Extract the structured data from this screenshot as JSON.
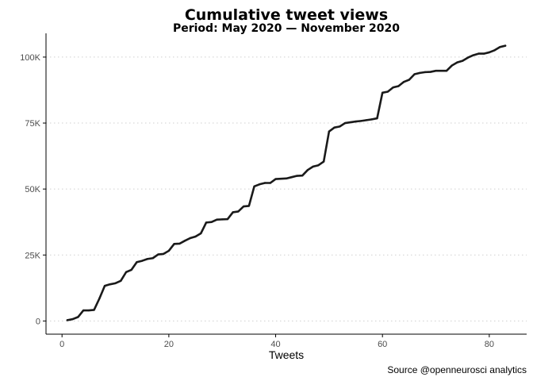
{
  "chart_data": {
    "type": "line",
    "title": "Cumulative tweet views",
    "subtitle": "Period: May 2020 — November 2020",
    "xlabel": "Tweets",
    "ylabel": "",
    "caption": "Source @openneurosci analytics",
    "xlim": [
      -3,
      87
    ],
    "ylim": [
      -5000,
      109000
    ],
    "xticks": [
      0,
      20,
      40,
      60,
      80
    ],
    "xtick_labels": [
      "0",
      "20",
      "40",
      "60",
      "80"
    ],
    "yticks": [
      0,
      25000,
      50000,
      75000,
      100000
    ],
    "ytick_labels": [
      "0",
      "25K",
      "50K",
      "75K",
      "100K"
    ],
    "grid": "horizontal-dotted",
    "legend": "none",
    "line_color": "#1a1a1a",
    "x": [
      1,
      2,
      3,
      4,
      5,
      6,
      7,
      8,
      9,
      10,
      11,
      12,
      13,
      14,
      15,
      16,
      17,
      18,
      19,
      20,
      21,
      22,
      23,
      24,
      25,
      26,
      27,
      28,
      29,
      30,
      31,
      32,
      33,
      34,
      35,
      36,
      37,
      38,
      39,
      40,
      41,
      42,
      43,
      44,
      45,
      46,
      47,
      48,
      49,
      50,
      51,
      52,
      53,
      54,
      55,
      56,
      57,
      58,
      59,
      60,
      61,
      62,
      63,
      64,
      65,
      66,
      67,
      68,
      69,
      70,
      71,
      72,
      73,
      74,
      75,
      76,
      77,
      78,
      79,
      80,
      81,
      82,
      83
    ],
    "y": [
      300,
      700,
      1500,
      4000,
      4000,
      4200,
      8500,
      13300,
      13900,
      14300,
      15200,
      18500,
      19400,
      22300,
      22800,
      23500,
      23800,
      25200,
      25400,
      26600,
      29200,
      29300,
      30400,
      31400,
      32000,
      33200,
      37300,
      37500,
      38400,
      38500,
      38600,
      41200,
      41500,
      43400,
      43600,
      51000,
      51800,
      52300,
      52300,
      53800,
      53900,
      54000,
      54500,
      55000,
      55100,
      57200,
      58500,
      59000,
      60400,
      71800,
      73300,
      73700,
      75000,
      75300,
      75600,
      75800,
      76100,
      76400,
      76800,
      86500,
      86900,
      88500,
      89000,
      90600,
      91400,
      93500,
      94000,
      94300,
      94400,
      94800,
      94800,
      94800,
      96800,
      98000,
      98600,
      99800,
      100700,
      101300,
      101300,
      101800,
      102600,
      103800,
      104300
    ]
  }
}
